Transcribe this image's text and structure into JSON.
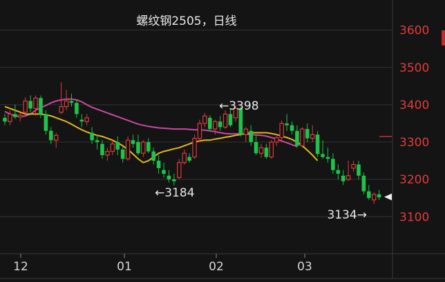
{
  "chart_data": {
    "type": "candlestick",
    "title": "螺纹钢2505，日线",
    "ylim": [
      3010,
      3640
    ],
    "yticks": [
      "3600",
      "3500",
      "3400",
      "3300",
      "3200",
      "3100"
    ],
    "xticks": [
      "12",
      "01",
      "02",
      "03"
    ],
    "colors": {
      "up": "#e23b3b",
      "down": "#1fc24a",
      "ma_short": "#e3b81c",
      "ma_long": "#cc49a3",
      "background": "#141414",
      "grid": "#333333"
    },
    "annotations": [
      {
        "label": "←3398",
        "value": 3398
      },
      {
        "label": "←3184",
        "value": 3184
      },
      {
        "label": "3134→",
        "value": 3134
      }
    ],
    "current_price": 3153,
    "reference_level": 3315,
    "candles": [
      [
        3365,
        3375,
        3345,
        3355
      ],
      [
        3355,
        3385,
        3345,
        3375
      ],
      [
        3375,
        3400,
        3362,
        3367
      ],
      [
        3367,
        3378,
        3355,
        3372
      ],
      [
        3380,
        3420,
        3370,
        3410
      ],
      [
        3410,
        3425,
        3380,
        3390
      ],
      [
        3390,
        3425,
        3370,
        3418
      ],
      [
        3418,
        3425,
        3365,
        3375
      ],
      [
        3375,
        3385,
        3320,
        3330
      ],
      [
        3330,
        3340,
        3295,
        3305
      ],
      [
        3305,
        3325,
        3285,
        3318
      ],
      [
        3380,
        3460,
        3375,
        3395
      ],
      [
        3395,
        3440,
        3385,
        3410
      ],
      [
        3410,
        3430,
        3395,
        3405
      ],
      [
        3405,
        3415,
        3365,
        3375
      ],
      [
        3360,
        3375,
        3340,
        3355
      ],
      [
        3355,
        3375,
        3345,
        3365
      ],
      [
        3325,
        3340,
        3295,
        3305
      ],
      [
        3305,
        3320,
        3280,
        3300
      ],
      [
        3295,
        3305,
        3255,
        3265
      ],
      [
        3265,
        3285,
        3250,
        3275
      ],
      [
        3275,
        3305,
        3265,
        3295
      ],
      [
        3300,
        3315,
        3265,
        3280
      ],
      [
        3280,
        3290,
        3245,
        3255
      ],
      [
        3255,
        3315,
        3250,
        3305
      ],
      [
        3305,
        3320,
        3285,
        3295
      ],
      [
        3300,
        3320,
        3265,
        3270
      ],
      [
        3270,
        3305,
        3260,
        3300
      ],
      [
        3300,
        3310,
        3270,
        3275
      ],
      [
        3275,
        3285,
        3240,
        3250
      ],
      [
        3250,
        3265,
        3215,
        3230
      ],
      [
        3225,
        3245,
        3205,
        3215
      ],
      [
        3210,
        3225,
        3192,
        3200
      ],
      [
        3200,
        3215,
        3184,
        3195
      ],
      [
        3205,
        3255,
        3200,
        3245
      ],
      [
        3245,
        3280,
        3240,
        3270
      ],
      [
        3260,
        3270,
        3245,
        3250
      ],
      [
        3260,
        3320,
        3255,
        3310
      ],
      [
        3310,
        3360,
        3300,
        3350
      ],
      [
        3350,
        3378,
        3340,
        3370
      ],
      [
        3365,
        3372,
        3330,
        3335
      ],
      [
        3335,
        3360,
        3320,
        3355
      ],
      [
        3355,
        3370,
        3330,
        3340
      ],
      [
        3340,
        3385,
        3335,
        3375
      ],
      [
        3375,
        3390,
        3340,
        3345
      ],
      [
        3365,
        3398,
        3355,
        3390
      ],
      [
        3390,
        3395,
        3315,
        3320
      ],
      [
        3320,
        3340,
        3300,
        3335
      ],
      [
        3330,
        3345,
        3290,
        3300
      ],
      [
        3300,
        3320,
        3265,
        3270
      ],
      [
        3270,
        3295,
        3258,
        3285
      ],
      [
        3285,
        3295,
        3255,
        3260
      ],
      [
        3260,
        3305,
        3255,
        3300
      ],
      [
        3300,
        3320,
        3290,
        3312
      ],
      [
        3312,
        3358,
        3305,
        3350
      ],
      [
        3350,
        3375,
        3330,
        3345
      ],
      [
        3345,
        3355,
        3320,
        3330
      ],
      [
        3330,
        3345,
        3285,
        3290
      ],
      [
        3290,
        3340,
        3285,
        3335
      ],
      [
        3335,
        3350,
        3300,
        3310
      ],
      [
        3310,
        3345,
        3300,
        3320
      ],
      [
        3320,
        3330,
        3260,
        3268
      ],
      [
        3268,
        3305,
        3255,
        3260
      ],
      [
        3260,
        3285,
        3245,
        3255
      ],
      [
        3255,
        3270,
        3215,
        3225
      ],
      [
        3225,
        3240,
        3200,
        3215
      ],
      [
        3210,
        3225,
        3185,
        3195
      ],
      [
        3200,
        3250,
        3195,
        3210
      ],
      [
        3230,
        3250,
        3220,
        3240
      ],
      [
        3240,
        3250,
        3200,
        3210
      ],
      [
        3210,
        3218,
        3160,
        3168
      ],
      [
        3168,
        3185,
        3145,
        3150
      ],
      [
        3145,
        3165,
        3134,
        3160
      ],
      [
        3160,
        3172,
        3145,
        3152
      ]
    ],
    "ma_short": [
      3395,
      3390,
      3385,
      3380,
      3375,
      3375,
      3375,
      3375,
      3373,
      3370,
      3365,
      3360,
      3355,
      3348,
      3340,
      3333,
      3327,
      3322,
      3318,
      3315,
      3310,
      3305,
      3298,
      3290,
      3280,
      3268,
      3255,
      3245,
      3250,
      3260,
      3270,
      3275,
      3278,
      3282,
      3285,
      3290,
      3295,
      3300,
      3303,
      3305,
      3305,
      3308,
      3310,
      3313,
      3315,
      3318,
      3320,
      3323,
      3325,
      3325,
      3325,
      3325,
      3323,
      3320,
      3316,
      3312,
      3307,
      3300,
      3290,
      3278,
      3265,
      3250
    ],
    "ma_long": [
      3382,
      3375,
      3370,
      3368,
      3370,
      3375,
      3385,
      3392,
      3398,
      3405,
      3410,
      3413,
      3415,
      3415,
      3413,
      3408,
      3400,
      3393,
      3388,
      3383,
      3378,
      3373,
      3368,
      3363,
      3358,
      3353,
      3348,
      3345,
      3342,
      3340,
      3338,
      3337,
      3336,
      3335,
      3335,
      3335,
      3334,
      3333,
      3333,
      3332,
      3330,
      3328,
      3325,
      3323,
      3322,
      3322,
      3322,
      3321,
      3320,
      3319,
      3318,
      3316,
      3312,
      3308,
      3303,
      3298,
      3293,
      3288
    ]
  }
}
